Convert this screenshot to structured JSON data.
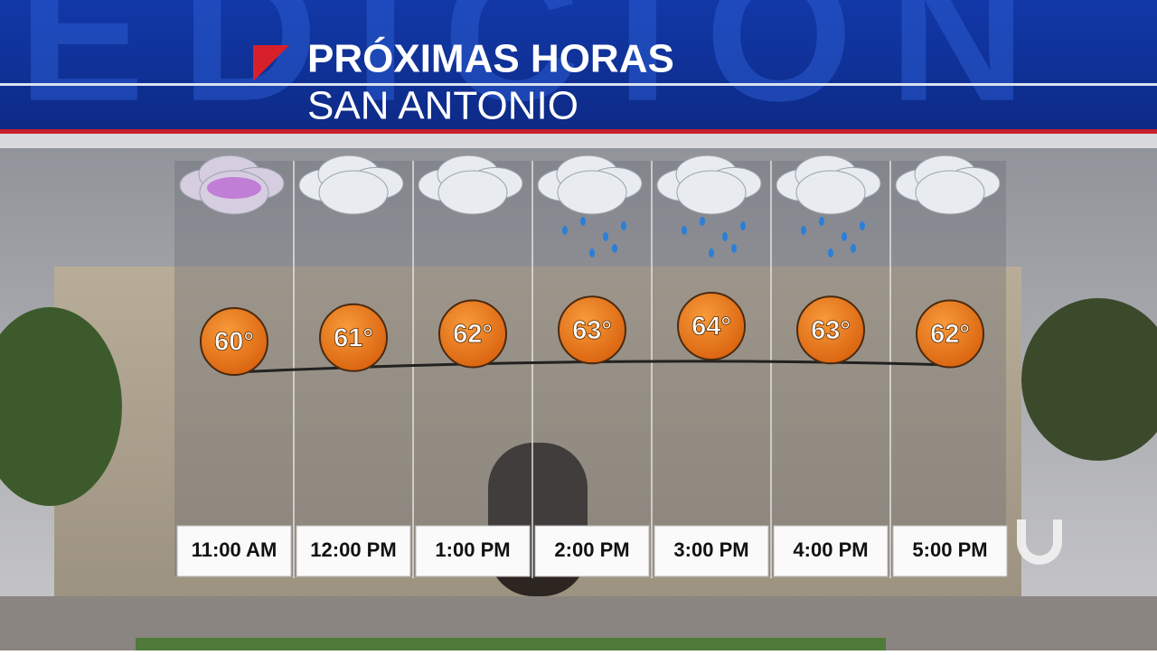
{
  "background_text": "EDICION",
  "chart_data": {
    "type": "line",
    "title": "PRÓXIMAS HORAS",
    "subtitle": "SAN ANTONIO",
    "categories": [
      "11:00 AM",
      "12:00 PM",
      "1:00 PM",
      "2:00 PM",
      "3:00 PM",
      "4:00 PM",
      "5:00 PM"
    ],
    "values": [
      60,
      61,
      62,
      63,
      64,
      63,
      62
    ],
    "value_labels": [
      "60°",
      "61°",
      "62°",
      "63°",
      "64°",
      "63°",
      "62°"
    ],
    "color": "#e8761c"
  }
}
